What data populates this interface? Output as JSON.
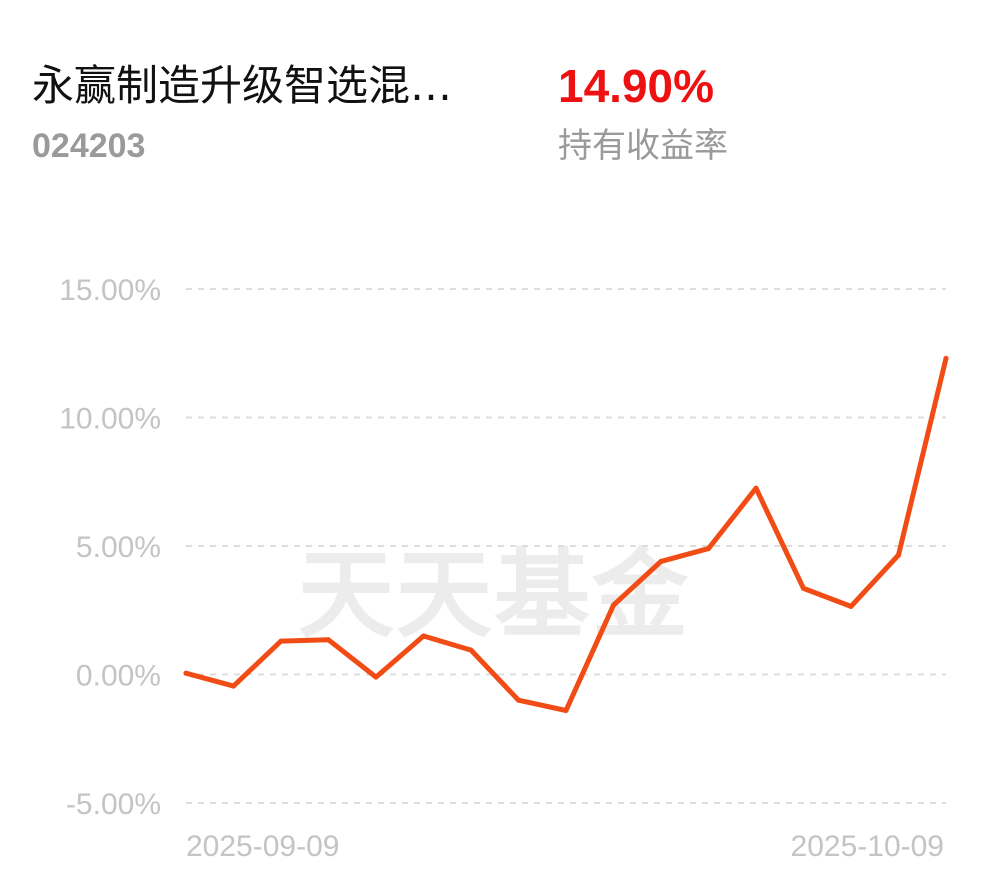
{
  "header": {
    "fund_name": "永赢制造升级智选混…",
    "fund_code": "024203",
    "return_value": "14.90%",
    "return_label": "持有收益率"
  },
  "watermark": "天天基金",
  "colors": {
    "line": "#f24c16",
    "return": "#ee1111",
    "grid": "#dddddd",
    "tick_text": "#c4c4c4",
    "watermark": "#ececec"
  },
  "chart_data": {
    "type": "line",
    "ylim": [
      -5,
      15
    ],
    "yticks": [
      15,
      10,
      5,
      0,
      -5
    ],
    "ytick_labels": [
      "15.00%",
      "10.00%",
      "5.00%",
      "0.00%",
      "-5.00%"
    ],
    "xtick_labels": [
      "2025-09-09",
      "2025-10-09"
    ],
    "grid": true,
    "series": [
      {
        "values": [
          0.05,
          -0.45,
          1.3,
          1.35,
          -0.1,
          1.5,
          0.95,
          -1.0,
          -1.4,
          2.7,
          4.4,
          4.9,
          7.25,
          3.35,
          2.65,
          4.65,
          12.3
        ]
      }
    ]
  }
}
